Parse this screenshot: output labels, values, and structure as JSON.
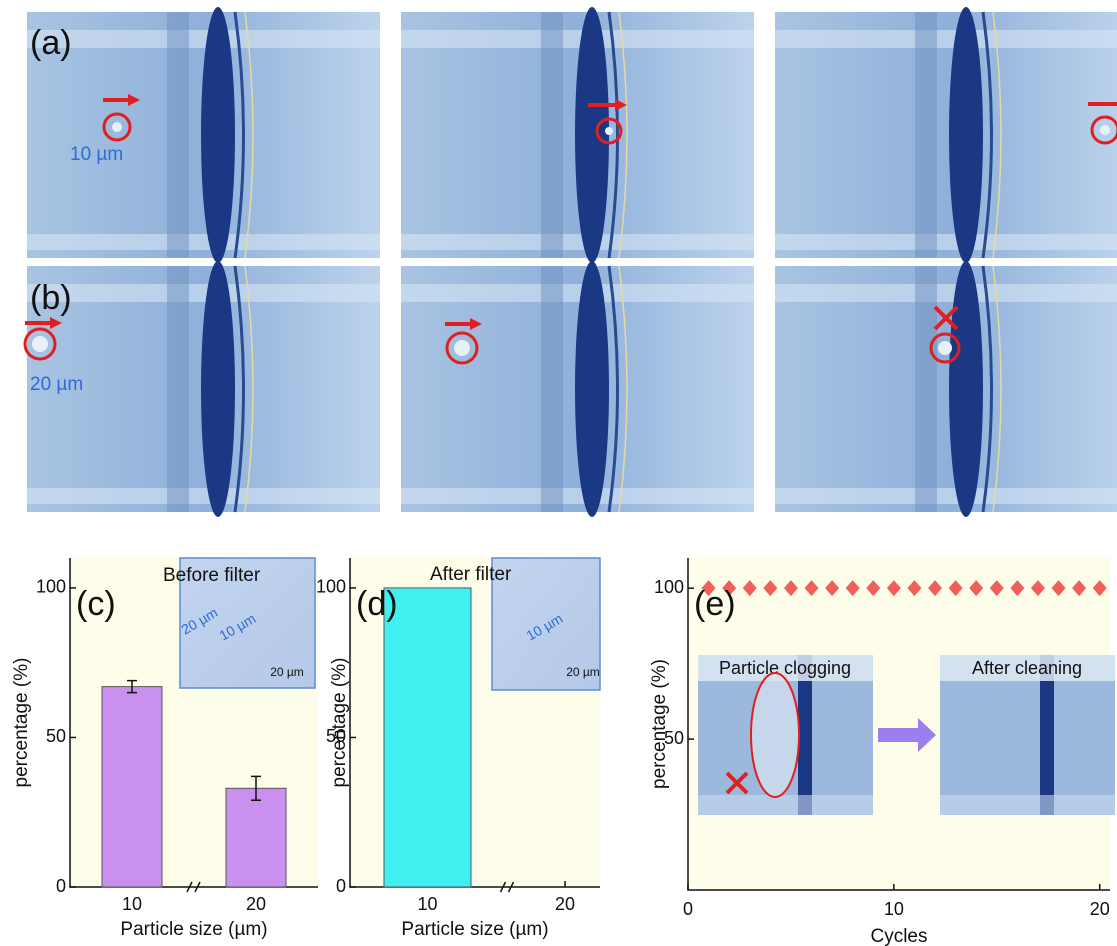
{
  "figure": {
    "row_labels": [
      "(a)",
      "(b)"
    ],
    "size_labels": [
      "10 µm",
      "20 µm"
    ]
  },
  "chart_data": [
    {
      "type": "bar",
      "panel_label": "(c)",
      "inset_title": "Before filter",
      "inset_texts": [
        "20 µm",
        "10 µm",
        "20 µm"
      ],
      "categories": [
        "10",
        "20"
      ],
      "values": [
        67,
        33
      ],
      "errors": [
        2,
        4
      ],
      "color": "#c990f0",
      "ylim": [
        0,
        110
      ],
      "yticks": [
        0,
        50,
        100
      ],
      "ylabel": "percentage (%)",
      "xlabel": "Particle size (µm)"
    },
    {
      "type": "bar",
      "panel_label": "(d)",
      "inset_title": "After filter",
      "inset_texts": [
        "10 µm",
        "20 µm"
      ],
      "categories": [
        "10",
        "20"
      ],
      "values": [
        100,
        0
      ],
      "color": "#40f0f0",
      "ylim": [
        0,
        110
      ],
      "yticks": [
        0,
        50,
        100
      ],
      "ylabel": "percentage (%)",
      "xlabel": "Particle size (µm)"
    },
    {
      "type": "scatter",
      "panel_label": "(e)",
      "insets": [
        "Particle clogging",
        "After cleaning"
      ],
      "x": [
        1,
        2,
        3,
        4,
        5,
        6,
        7,
        8,
        9,
        10,
        11,
        12,
        13,
        14,
        15,
        16,
        17,
        18,
        19,
        20
      ],
      "values": [
        100,
        100,
        100,
        100,
        100,
        100,
        100,
        100,
        100,
        100,
        100,
        100,
        100,
        100,
        100,
        100,
        100,
        100,
        100,
        100
      ],
      "color": "#f0605a",
      "xlim": [
        0,
        20.5
      ],
      "xticks": [
        0,
        10,
        20
      ],
      "ylim": [
        0,
        110
      ],
      "yticks": [
        50,
        100
      ],
      "ylabel": "percentage (%)",
      "xlabel": "Cycles"
    }
  ]
}
